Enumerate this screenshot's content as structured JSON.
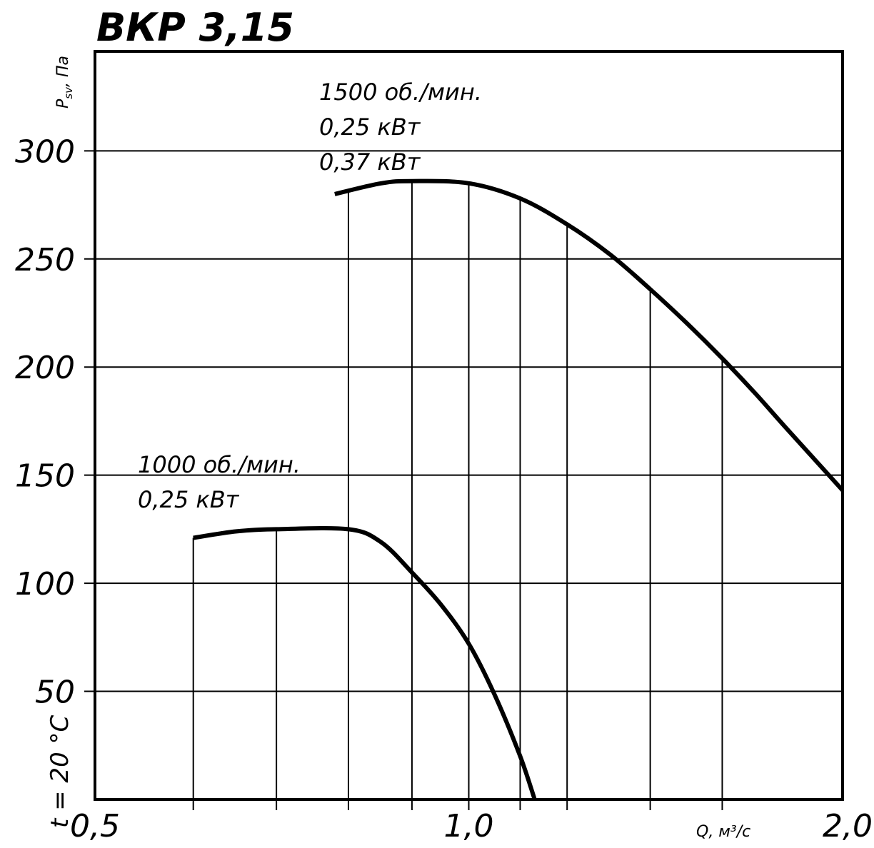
{
  "chart_data": {
    "type": "line",
    "title": "ВКР 3,15",
    "xlabel": "Q, м³/с",
    "ylabel": "P",
    "ylabel_sub": "sv",
    "ylabel_unit": ", Па",
    "side_note": "t = 20 °C",
    "x_scale": "log",
    "xlim": [
      0.5,
      2.0
    ],
    "ylim": [
      0,
      346
    ],
    "x_ticks": [
      {
        "value": 0.5,
        "label": "0,5"
      },
      {
        "value": 1.0,
        "label": "1,0"
      },
      {
        "value": 2.0,
        "label": "2,0"
      }
    ],
    "x_gridlines": [
      0.6,
      0.7,
      0.8,
      0.9,
      1.0,
      1.1,
      1.2,
      1.4,
      1.6
    ],
    "y_ticks": [
      {
        "value": 50,
        "label": "50"
      },
      {
        "value": 100,
        "label": "100"
      },
      {
        "value": 150,
        "label": "150"
      },
      {
        "value": 200,
        "label": "200"
      },
      {
        "value": 250,
        "label": "250"
      },
      {
        "value": 300,
        "label": "300"
      }
    ],
    "grid": true,
    "series": [
      {
        "labels": [
          "1500 об./мин.",
          "0,25 кВт",
          "0,37 кВт"
        ],
        "x": [
          0.78,
          0.85,
          0.9,
          1.0,
          1.1,
          1.2,
          1.3,
          1.4,
          1.5,
          1.6,
          1.7,
          1.8,
          2.0
        ],
        "y": [
          280,
          285,
          286,
          285,
          278,
          266,
          252,
          236,
          220,
          204,
          188,
          172,
          143
        ]
      },
      {
        "labels": [
          "1000 об./мин.",
          "0,25 кВт"
        ],
        "x": [
          0.6,
          0.65,
          0.7,
          0.8,
          0.85,
          0.9,
          0.95,
          1.0,
          1.05,
          1.1,
          1.13
        ],
        "y": [
          121,
          124,
          125,
          125,
          119,
          105,
          90,
          72,
          48,
          20,
          0
        ]
      }
    ]
  }
}
